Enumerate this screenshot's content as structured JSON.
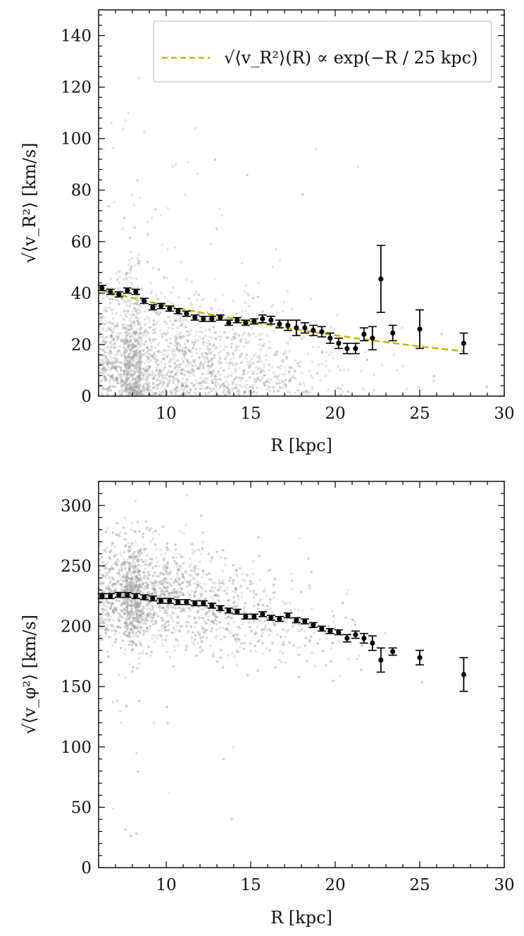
{
  "chart_data": [
    {
      "type": "scatter",
      "title": "",
      "xlabel": "R [kpc]",
      "ylabel": "√⟨v_R²⟩ [km/s]",
      "xlim": [
        6,
        30
      ],
      "ylim": [
        0,
        150
      ],
      "xticks": [
        10,
        15,
        20,
        25,
        30
      ],
      "yticks": [
        0,
        20,
        40,
        60,
        80,
        100,
        120,
        140
      ],
      "grid": false,
      "legend": {
        "placement": "top-right",
        "entries": [
          {
            "label": "√⟨v_R²⟩(R) ∝ exp(−R / 25 kpc)",
            "color": "#c8b400",
            "style": "dashed"
          }
        ]
      },
      "colors": {
        "scatter": "#9e9e9e",
        "points": "#000000",
        "fit": "#c8b400"
      },
      "background_scatter": {
        "note_center_y": 20,
        "spread": "dense cloud of individual stars"
      },
      "series": [
        {
          "kind": "binned",
          "x": [
            6.2,
            6.7,
            7.2,
            7.7,
            8.2,
            8.7,
            9.2,
            9.7,
            10.2,
            10.7,
            11.2,
            11.7,
            12.2,
            12.7,
            13.2,
            13.7,
            14.2,
            14.7,
            15.2,
            15.7,
            16.2,
            16.7,
            17.2,
            17.7,
            18.2,
            18.7,
            19.2,
            19.7,
            20.2,
            20.7,
            21.2,
            21.7,
            22.2,
            22.7,
            23.4,
            25.0,
            27.6
          ],
          "y": [
            42,
            40.5,
            39.5,
            41,
            40.5,
            37,
            34.5,
            35,
            34,
            33,
            32,
            30.5,
            30,
            30,
            30.5,
            28.5,
            29.5,
            28.5,
            29,
            30,
            29.5,
            28,
            27.5,
            26.5,
            26.5,
            25.5,
            25,
            22.5,
            20.5,
            18.5,
            18.5,
            24,
            22.5,
            45.5,
            24.5,
            26,
            20.5
          ],
          "err": [
            1,
            1,
            1,
            1,
            1,
            1,
            1,
            1,
            1,
            1,
            1,
            1,
            1,
            1,
            1,
            1,
            1,
            1,
            1,
            1.5,
            1.5,
            1.5,
            2,
            3,
            2,
            2,
            2,
            2,
            2,
            2,
            2,
            2.5,
            4.5,
            13,
            3,
            7.5,
            4
          ]
        },
        {
          "kind": "fit",
          "x": [
            6.2,
            27.6
          ],
          "y_start": 41,
          "scale_length_kpc": 25
        }
      ]
    },
    {
      "type": "scatter",
      "title": "",
      "xlabel": "R [kpc]",
      "ylabel": "√⟨v_φ²⟩ [km/s]",
      "xlim": [
        6,
        30
      ],
      "ylim": [
        0,
        320
      ],
      "xticks": [
        10,
        15,
        20,
        25,
        30
      ],
      "yticks": [
        0,
        50,
        100,
        150,
        200,
        250,
        300
      ],
      "grid": false,
      "colors": {
        "scatter": "#9e9e9e",
        "points": "#000000"
      },
      "background_scatter": {
        "note_center_y": 215,
        "spread": "dense cloud of individual stars"
      },
      "series": [
        {
          "kind": "binned",
          "x": [
            6.2,
            6.7,
            7.2,
            7.7,
            8.2,
            8.7,
            9.2,
            9.7,
            10.2,
            10.7,
            11.2,
            11.7,
            12.2,
            12.7,
            13.2,
            13.7,
            14.2,
            14.7,
            15.2,
            15.7,
            16.2,
            16.7,
            17.2,
            17.7,
            18.2,
            18.7,
            19.2,
            19.7,
            20.2,
            20.7,
            21.2,
            21.7,
            22.2,
            22.7,
            23.4,
            25.0,
            27.6
          ],
          "y": [
            225,
            225,
            226,
            226,
            225,
            224,
            223,
            221,
            221,
            220,
            220,
            219,
            219,
            217,
            215,
            213,
            212,
            208,
            208,
            210,
            207,
            206,
            209,
            205,
            204,
            201,
            198,
            196,
            195,
            190,
            193,
            190,
            186,
            172,
            179,
            174,
            160
          ],
          "err": [
            2,
            2,
            2,
            2,
            2,
            2,
            2,
            2,
            2,
            2,
            2,
            2,
            2,
            2,
            2,
            2,
            2,
            2,
            2,
            2,
            2,
            2,
            2,
            2,
            2,
            2,
            2,
            2,
            2,
            3,
            3,
            4,
            6,
            10,
            3,
            6,
            14
          ]
        }
      ]
    }
  ]
}
